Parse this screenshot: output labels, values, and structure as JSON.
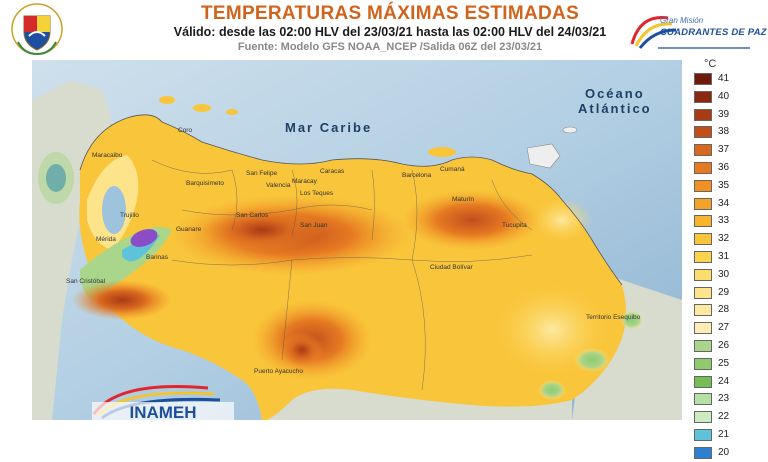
{
  "header": {
    "title": "TEMPERATURAS MÁXIMAS ESTIMADAS",
    "validity": "Válido: desde las 02:00 HLV del 23/03/21 hasta las 02:00 HLV del 24/03/21",
    "source": "Fuente: Modelo GFS NOAA_NCEP /Salida 06Z del 23/03/21"
  },
  "branding": {
    "mission_sub": "Gran Misión",
    "mission_main": "CUADRANTES DE PAZ",
    "agency_logo": "INAMEH",
    "coat_of_arms_icon": "venezuela-coat-of-arms-icon",
    "mission_logo_icon": "cuadrantes-de-paz-logo-icon"
  },
  "map": {
    "ocean_label_line1": "Océano",
    "ocean_label_line2": "Atlántico",
    "sea_label": "Mar Caribe",
    "places": [
      "Coro",
      "Maracaibo",
      "Barquisimeto",
      "San Felipe",
      "Valencia",
      "Maracay",
      "Caracas",
      "Los Teques",
      "Barcelona",
      "Cumaná",
      "Maturín",
      "Trujillo",
      "Guanare",
      "Barinas",
      "San Carlos",
      "San Juan",
      "Tucupita",
      "Ciudad Bolívar",
      "San Cristóbal",
      "Puerto Ayacucho",
      "Mérida",
      "Territorio Esequibo"
    ],
    "colors": {
      "sea": "#bcd5e6",
      "sea_deep": "#93b7d4"
    }
  },
  "legend": {
    "unit": "°C",
    "items": [
      {
        "label": "41",
        "color": "#6e1a0c"
      },
      {
        "label": "40",
        "color": "#8a2811"
      },
      {
        "label": "39",
        "color": "#a83a16"
      },
      {
        "label": "38",
        "color": "#c24e1c"
      },
      {
        "label": "37",
        "color": "#d9681f"
      },
      {
        "label": "36",
        "color": "#e67a22"
      },
      {
        "label": "35",
        "color": "#ef8f24"
      },
      {
        "label": "34",
        "color": "#f3a428"
      },
      {
        "label": "33",
        "color": "#f7b52e"
      },
      {
        "label": "32",
        "color": "#f9c53b"
      },
      {
        "label": "31",
        "color": "#fbd34f"
      },
      {
        "label": "30",
        "color": "#fcdd6c"
      },
      {
        "label": "29",
        "color": "#fde48a"
      },
      {
        "label": "28",
        "color": "#fde9a2"
      },
      {
        "label": "27",
        "color": "#fdedb5"
      },
      {
        "label": "26",
        "color": "#a9d68a"
      },
      {
        "label": "25",
        "color": "#8fca6e"
      },
      {
        "label": "24",
        "color": "#76bd55"
      },
      {
        "label": "23",
        "color": "#b7e0a4"
      },
      {
        "label": "22",
        "color": "#cdebc0"
      },
      {
        "label": "21",
        "color": "#5ec3d8"
      },
      {
        "label": "20",
        "color": "#2e7fcf"
      }
    ]
  }
}
